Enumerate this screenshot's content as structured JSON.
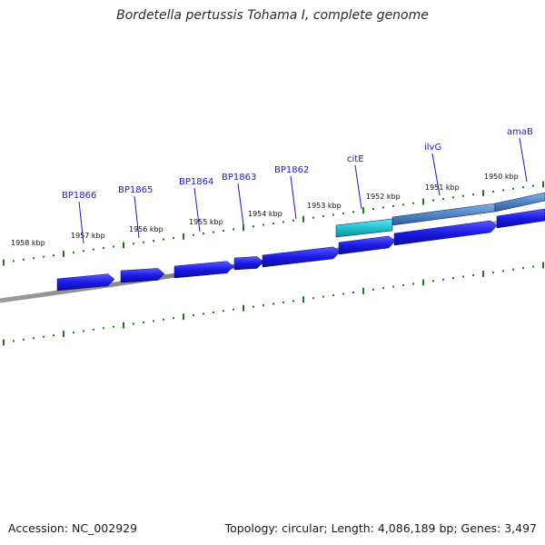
{
  "title": "Bordetella pertussis Tohama I, complete genome",
  "footer": {
    "accession": "Accession: NC_002929",
    "summary": "Topology: circular; Length: 4,086,189 bp; Genes: 3,497"
  },
  "colors": {
    "backbone": "#7a7a7a",
    "tick": "#1e7a1e",
    "gene_fill": "#1a1ae6",
    "gene_highlight_fill": "#1fc4cc",
    "gene_other_strand_fill": "#4f86c6",
    "label": "#1a1acc"
  },
  "scale_labels": [
    "1958 kbp",
    "1957 kbp",
    "1956 kbp",
    "1955 kbp",
    "1954 kbp",
    "1953 kbp",
    "1952 kbp",
    "1951 kbp",
    "1950 kbp"
  ],
  "gene_labels": [
    "BP1866",
    "BP1865",
    "BP1864",
    "BP1863",
    "BP1862",
    "citE",
    "ilvG",
    "amaB"
  ]
}
